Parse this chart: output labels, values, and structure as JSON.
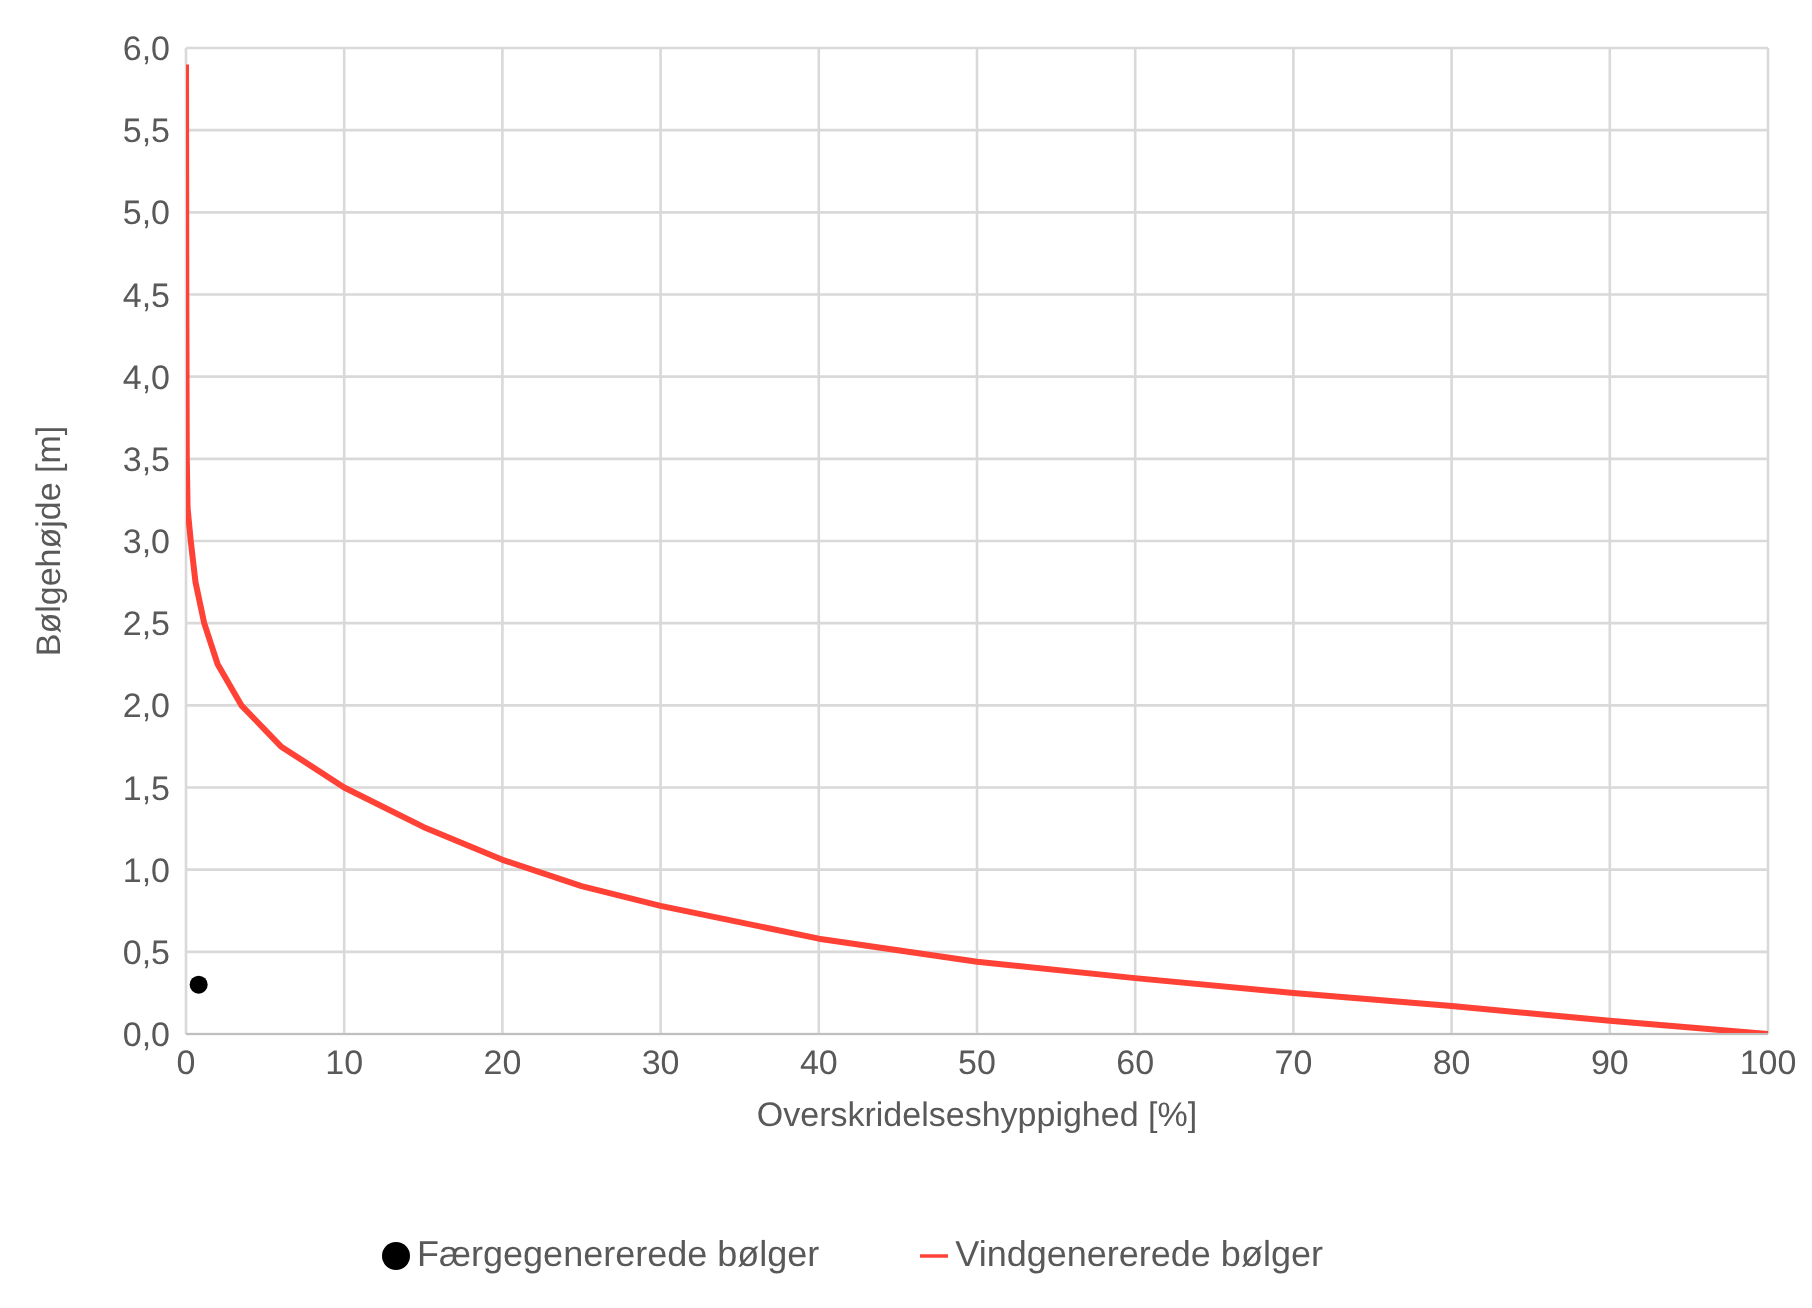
{
  "chart_data": {
    "type": "line",
    "xlabel": "Overskridelseshyppighed [%]",
    "ylabel": "Bølgehøjde [m]",
    "xlim": [
      0,
      100
    ],
    "xticks": [
      0,
      10,
      20,
      30,
      40,
      50,
      60,
      70,
      80,
      90,
      100
    ],
    "ylim": [
      0,
      6
    ],
    "yticks": [
      {
        "value": 0,
        "label": "0,0"
      },
      {
        "value": 0.5,
        "label": "0,5"
      },
      {
        "value": 1,
        "label": "1,0"
      },
      {
        "value": 1.5,
        "label": "1,5"
      },
      {
        "value": 2,
        "label": "2,0"
      },
      {
        "value": 2.5,
        "label": "2,5"
      },
      {
        "value": 3,
        "label": "3,0"
      },
      {
        "value": 3.5,
        "label": "3,5"
      },
      {
        "value": 4,
        "label": "4,0"
      },
      {
        "value": 4.5,
        "label": "4,5"
      },
      {
        "value": 5,
        "label": "5,0"
      },
      {
        "value": 5.5,
        "label": "5,5"
      },
      {
        "value": 6,
        "label": "6,0"
      }
    ],
    "grid": true,
    "legend": "bottom",
    "series": [
      {
        "name": "Færgegenererede bølger",
        "type": "scatter",
        "marker": "circle",
        "color": "#000000",
        "x": [
          0.8
        ],
        "values": [
          0.3
        ]
      },
      {
        "name": "Vindgenererede bølger",
        "type": "line",
        "marker": "none",
        "line_style": "solid",
        "color": "#ff4136",
        "x": [
          0,
          0.02,
          0.05,
          0.1,
          0.3,
          0.6,
          1.15,
          2,
          3.5,
          6,
          10,
          15,
          20,
          25,
          30,
          40,
          45,
          50,
          60,
          70,
          80,
          90,
          100
        ],
        "values": [
          5.9,
          4.5,
          3.5,
          3.2,
          3.0,
          2.75,
          2.5,
          2.25,
          2.0,
          1.75,
          1.5,
          1.26,
          1.06,
          0.9,
          0.78,
          0.58,
          0.51,
          0.44,
          0.34,
          0.25,
          0.17,
          0.08,
          0
        ]
      }
    ]
  }
}
